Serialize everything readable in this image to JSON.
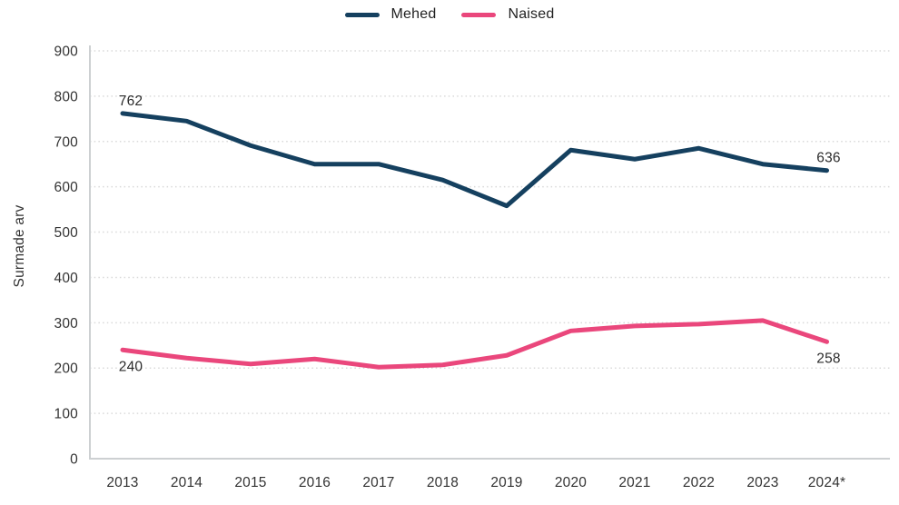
{
  "chart_data": {
    "type": "line",
    "title": "",
    "ylabel": "Surmade arv",
    "xlabel": "",
    "categories": [
      "2013",
      "2014",
      "2015",
      "2016",
      "2017",
      "2018",
      "2019",
      "2020",
      "2021",
      "2022",
      "2023",
      "2024*"
    ],
    "y_ticks": [
      0,
      100,
      200,
      300,
      400,
      500,
      600,
      700,
      800,
      900
    ],
    "ylim": [
      0,
      900
    ],
    "grid": "horizontal-dotted",
    "legend_position": "top-center",
    "series": [
      {
        "name": "Mehed",
        "color": "#15405f",
        "values": [
          762,
          745,
          691,
          650,
          650,
          615,
          558,
          681,
          661,
          685,
          650,
          636
        ]
      },
      {
        "name": "Naised",
        "color": "#ea477c",
        "values": [
          240,
          222,
          209,
          220,
          202,
          207,
          228,
          282,
          293,
          297,
          305,
          258
        ]
      }
    ],
    "annotations": [
      {
        "series": 0,
        "index": 0,
        "text": "762",
        "position": "above"
      },
      {
        "series": 0,
        "index": 11,
        "text": "636",
        "position": "above"
      },
      {
        "series": 1,
        "index": 0,
        "text": "240",
        "position": "below"
      },
      {
        "series": 1,
        "index": 11,
        "text": "258",
        "position": "below"
      }
    ],
    "colors": {
      "grid": "#d9d9d9",
      "axis": "#cdd0d2",
      "text": "#333333"
    }
  }
}
